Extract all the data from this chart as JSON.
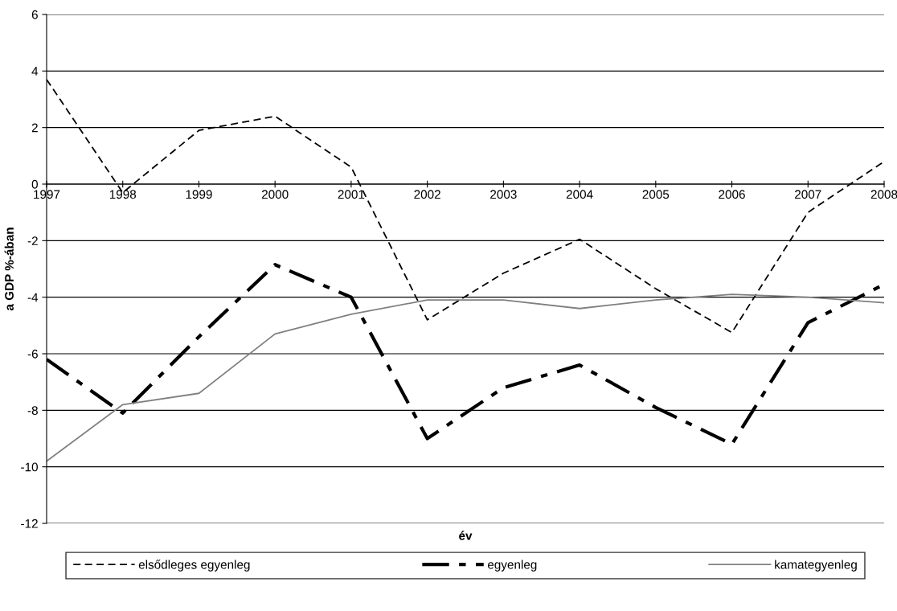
{
  "chart_data": {
    "type": "line",
    "xlabel": "év",
    "ylabel": "a GDP %-ában",
    "x": [
      1997,
      1998,
      1999,
      2000,
      2001,
      2002,
      2003,
      2004,
      2005,
      2006,
      2007,
      2008
    ],
    "xlim": [
      1997,
      2008
    ],
    "xticks": [
      1997,
      1998,
      1999,
      2000,
      2001,
      2002,
      2003,
      2004,
      2005,
      2006,
      2007,
      2008
    ],
    "ylim": [
      -12,
      6
    ],
    "yticks": [
      -12,
      -10,
      -8,
      -6,
      -4,
      -2,
      0,
      2,
      4,
      6
    ],
    "grid": "y",
    "legend": "bottom",
    "marker": "none",
    "series": [
      {
        "name": "elsődleges egyenleg",
        "color": "#000000",
        "line_style": "dashed",
        "values": [
          3.7,
          -0.3,
          1.9,
          2.4,
          0.6,
          -4.8,
          -3.15,
          -1.95,
          -3.7,
          -5.25,
          -1.0,
          0.8
        ]
      },
      {
        "name": "egyenleg",
        "color": "#000000",
        "line_style": "dashdot",
        "values": [
          -6.2,
          -8.1,
          -5.4,
          -2.85,
          -4.0,
          -9.0,
          -7.2,
          -6.4,
          -7.9,
          -9.2,
          -4.9,
          -3.55
        ]
      },
      {
        "name": "kamategyenleg",
        "color": "#808080",
        "line_style": "solid",
        "values": [
          -9.8,
          -7.8,
          -7.4,
          -5.3,
          -4.6,
          -4.1,
          -4.1,
          -4.4,
          -4.1,
          -3.9,
          -4.0,
          -4.2
        ]
      }
    ]
  }
}
